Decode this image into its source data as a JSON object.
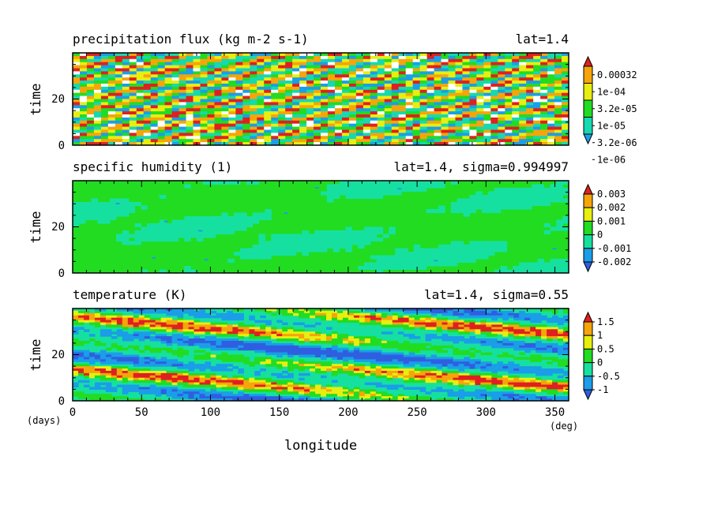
{
  "chart_data": [
    {
      "type": "heatmap",
      "title": "precipitation flux (kg m-2 s-1)",
      "annotation": "lat=1.4",
      "ylabel": "time",
      "xlim": [
        0,
        360
      ],
      "ylim": [
        0,
        40
      ],
      "yticks": [
        "0",
        "20"
      ],
      "colorbar": {
        "labels": [
          "0.00032",
          "1e-04",
          "3.2e-05",
          "1e-05",
          "3.2e-06",
          "1e-06"
        ],
        "colors": [
          "#1a9ee8",
          "#16d9b0",
          "#22dc22",
          "#e8ee10",
          "#f5a50a",
          "#e02020"
        ]
      }
    },
    {
      "type": "heatmap",
      "title": "specific humidity (1)",
      "annotation": "lat=1.4, sigma=0.994997",
      "ylabel": "time",
      "xlim": [
        0,
        360
      ],
      "ylim": [
        0,
        40
      ],
      "yticks": [
        "0",
        "20"
      ],
      "colorbar": {
        "labels": [
          "0.003",
          "0.002",
          "0.001",
          "0",
          "-0.001",
          "-0.002"
        ],
        "colors": [
          "#2f5fe0",
          "#1a9ee8",
          "#16e0a0",
          "#22dc22",
          "#e8ee10",
          "#f5a50a",
          "#e02020"
        ]
      }
    },
    {
      "type": "heatmap",
      "title": "temperature (K)",
      "annotation": "lat=1.4, sigma=0.55",
      "ylabel": "time",
      "xlabel": "longitude",
      "xlim": [
        0,
        360
      ],
      "ylim": [
        0,
        40
      ],
      "yticks": [
        "0",
        "20"
      ],
      "xticks": [
        "0",
        "50",
        "100",
        "150",
        "200",
        "250",
        "300",
        "350"
      ],
      "x_unit": "(deg)",
      "y_unit": "(days)",
      "colorbar": {
        "labels": [
          "1.5",
          "1",
          "0.5",
          "0",
          "-0.5",
          "-1"
        ],
        "colors": [
          "#2f5fe0",
          "#1a9ee8",
          "#16e0a0",
          "#22dc22",
          "#e8ee10",
          "#f5a50a",
          "#e02020"
        ]
      }
    }
  ]
}
